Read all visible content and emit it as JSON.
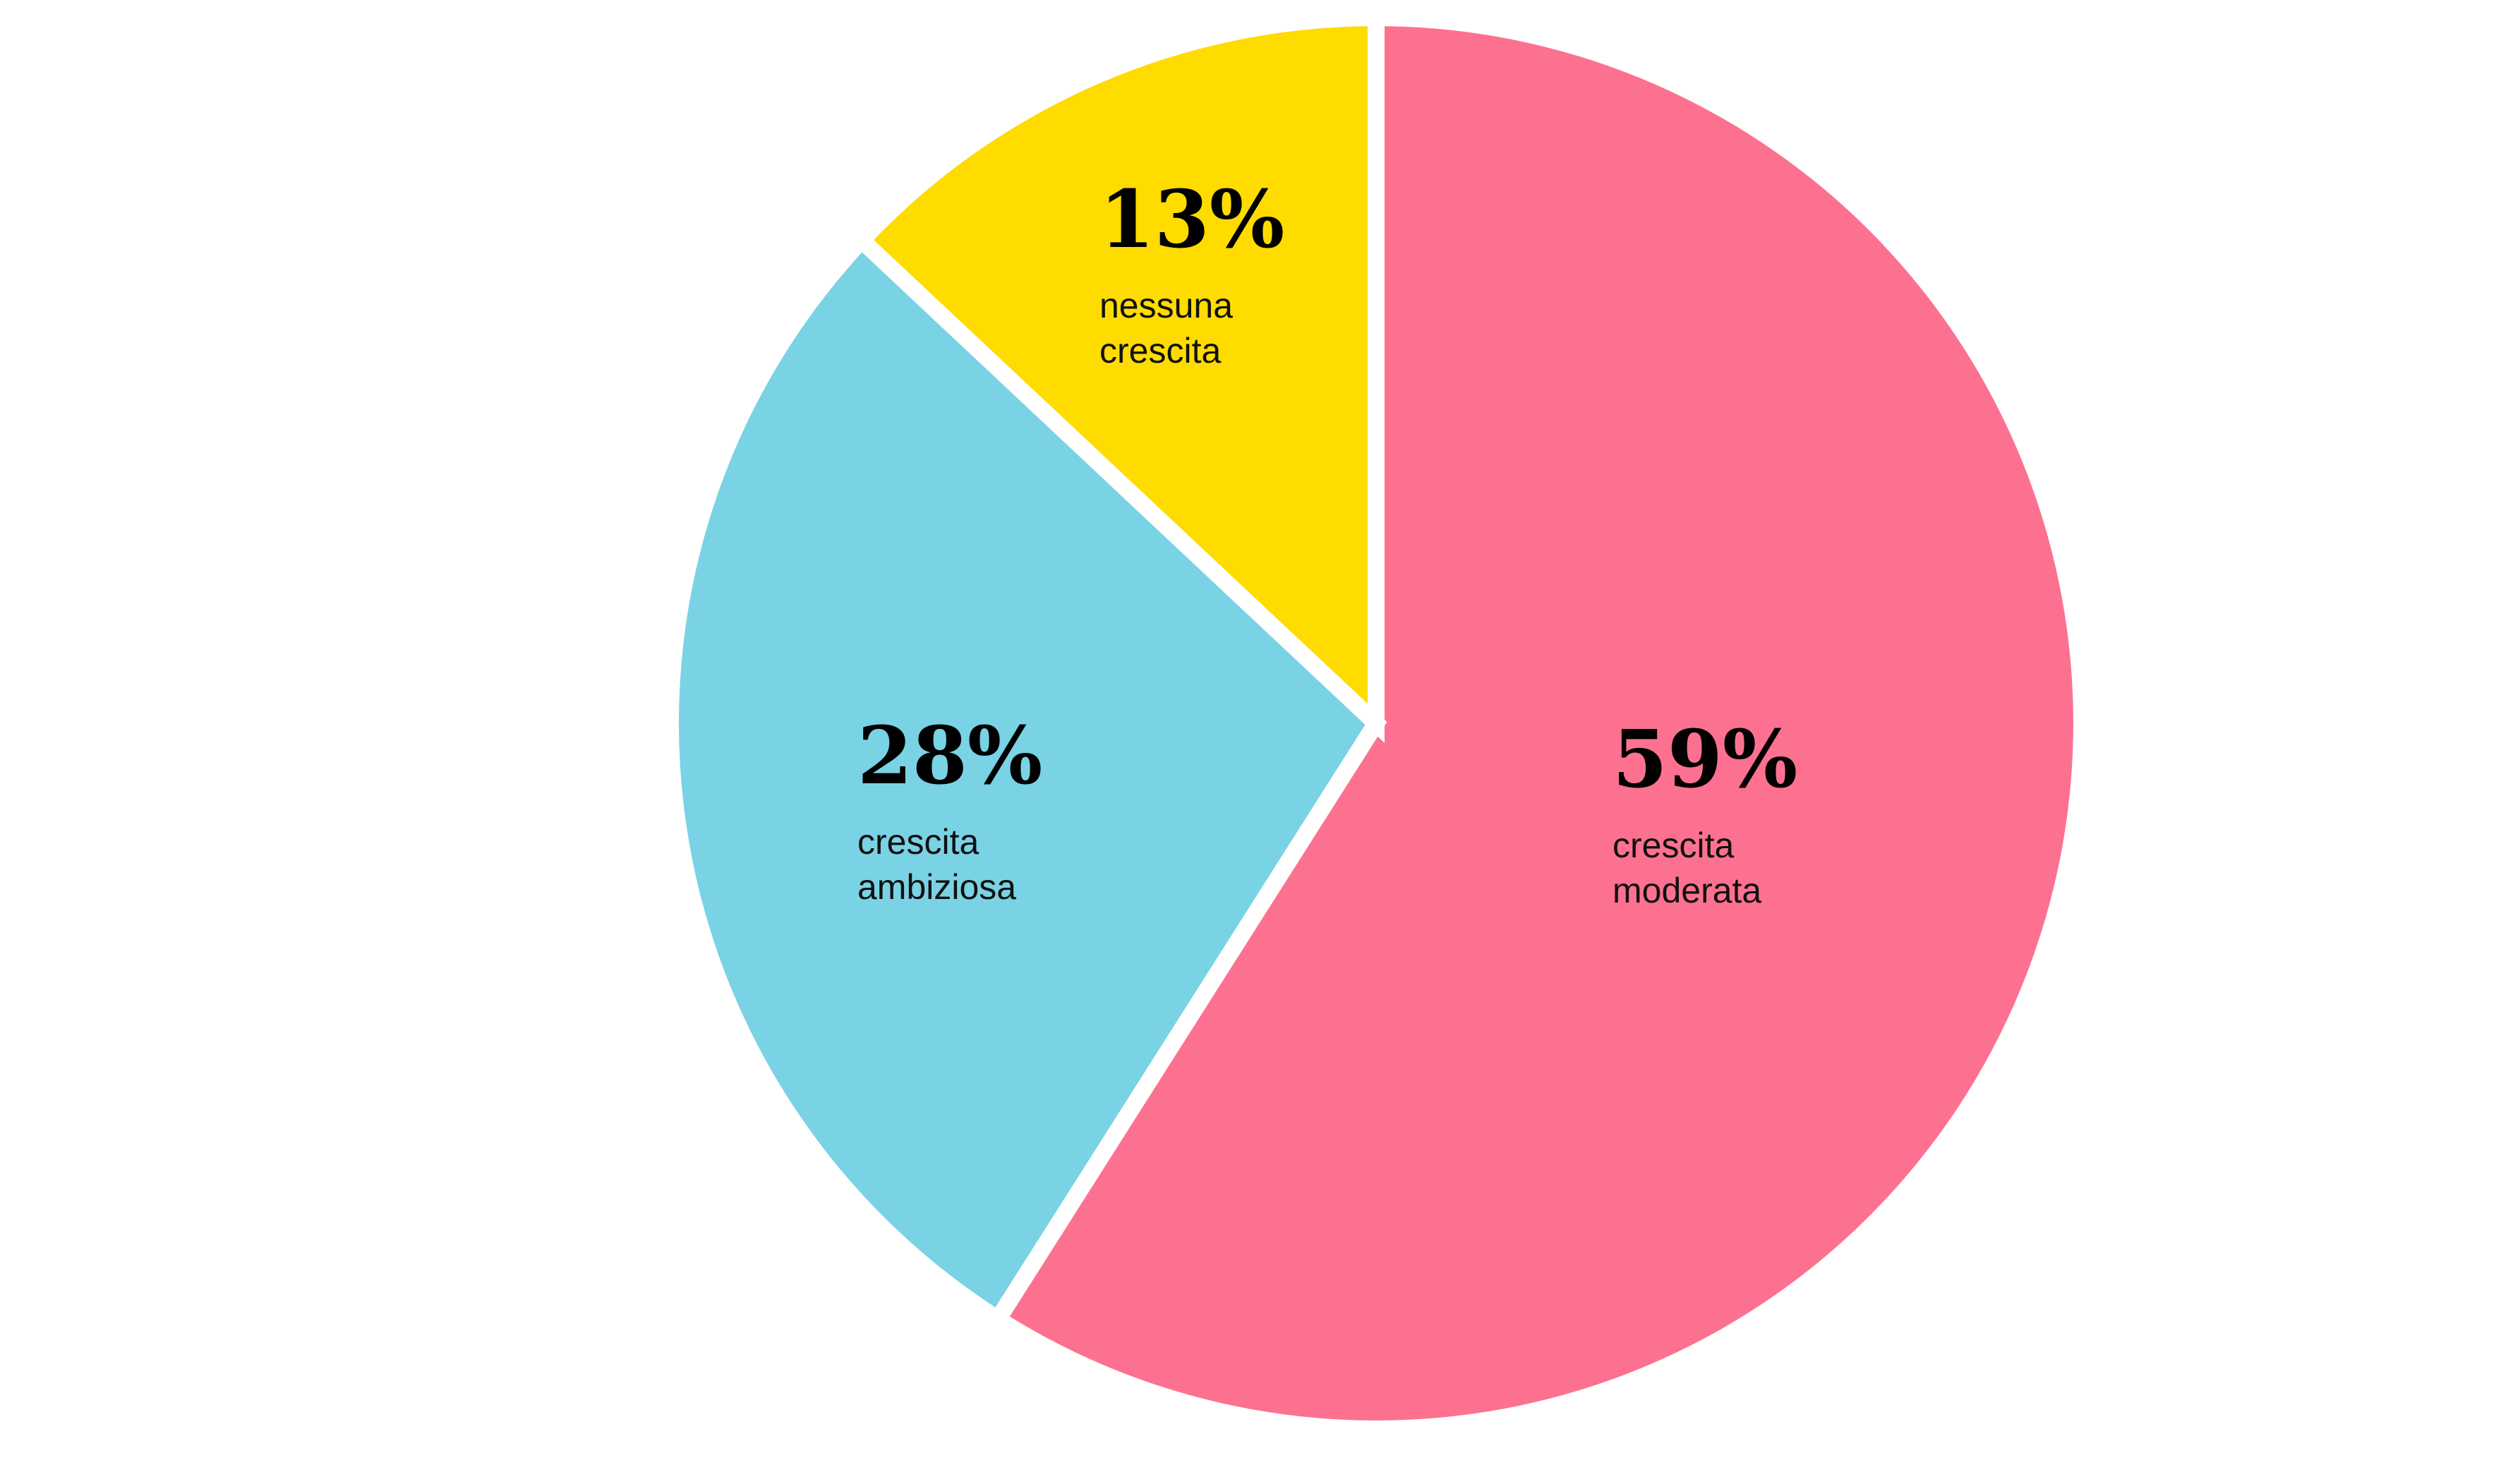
{
  "chart_data": {
    "type": "pie",
    "title": "",
    "start": "12 o'clock",
    "direction": "clockwise",
    "slice_separator_color": "#ffffff",
    "slices": [
      {
        "value": 59,
        "label": "59%",
        "description_lines": [
          "crescita",
          "moderata"
        ],
        "color": "#FD7190"
      },
      {
        "value": 28,
        "label": "28%",
        "description_lines": [
          "crescita",
          "ambiziosa"
        ],
        "color": "#7AD2E5"
      },
      {
        "value": 13,
        "label": "13%",
        "description_lines": [
          "nessuna",
          "crescita"
        ],
        "color": "#FEDC00"
      }
    ]
  }
}
